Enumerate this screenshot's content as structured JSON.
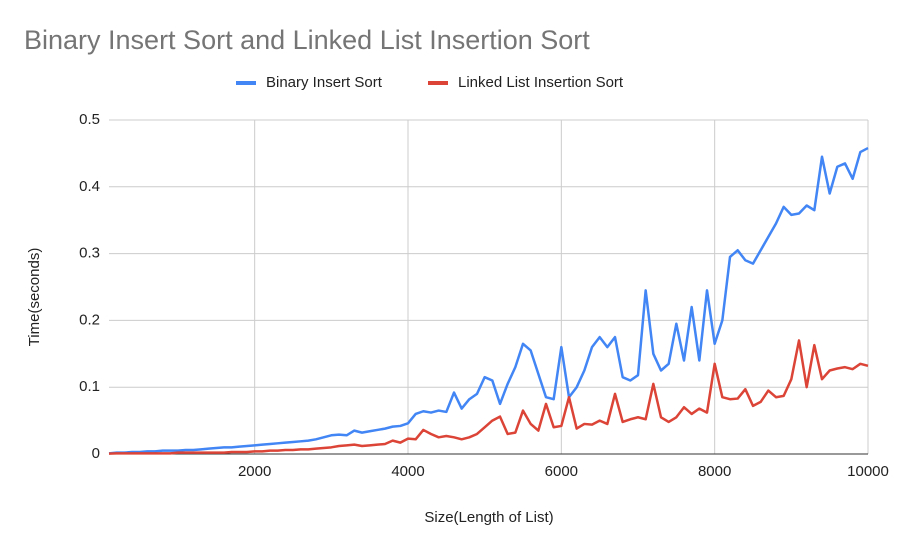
{
  "chart_data": {
    "type": "line",
    "title": "Binary Insert Sort and Linked List Insertion Sort",
    "x_label": "Size(Length of List)",
    "y_label": "Time(seconds)",
    "x": [
      100,
      200,
      300,
      400,
      500,
      600,
      700,
      800,
      900,
      1000,
      1100,
      1200,
      1300,
      1400,
      1500,
      1600,
      1700,
      1800,
      1900,
      2000,
      2100,
      2200,
      2300,
      2400,
      2500,
      2600,
      2700,
      2800,
      2900,
      3000,
      3100,
      3200,
      3300,
      3400,
      3500,
      3600,
      3700,
      3800,
      3900,
      4000,
      4100,
      4200,
      4300,
      4400,
      4500,
      4600,
      4700,
      4800,
      4900,
      5000,
      5100,
      5200,
      5300,
      5400,
      5500,
      5600,
      5700,
      5800,
      5900,
      6000,
      6100,
      6200,
      6300,
      6400,
      6500,
      6600,
      6700,
      6800,
      6900,
      7000,
      7100,
      7200,
      7300,
      7400,
      7500,
      7600,
      7700,
      7800,
      7900,
      8000,
      8100,
      8200,
      8300,
      8400,
      8500,
      8600,
      8700,
      8800,
      8900,
      9000,
      9100,
      9200,
      9300,
      9400,
      9500,
      9600,
      9700,
      9800,
      9900,
      10000
    ],
    "series": [
      {
        "name": "Binary Insert Sort",
        "color": "#4285f4",
        "values": [
          0.001,
          0.002,
          0.002,
          0.003,
          0.003,
          0.004,
          0.004,
          0.005,
          0.005,
          0.005,
          0.006,
          0.006,
          0.007,
          0.008,
          0.009,
          0.01,
          0.01,
          0.011,
          0.012,
          0.013,
          0.014,
          0.015,
          0.016,
          0.017,
          0.018,
          0.019,
          0.02,
          0.022,
          0.025,
          0.028,
          0.029,
          0.028,
          0.035,
          0.032,
          0.034,
          0.036,
          0.038,
          0.041,
          0.042,
          0.046,
          0.06,
          0.064,
          0.062,
          0.065,
          0.063,
          0.092,
          0.068,
          0.082,
          0.09,
          0.115,
          0.11,
          0.075,
          0.105,
          0.13,
          0.165,
          0.155,
          0.12,
          0.085,
          0.082,
          0.16,
          0.085,
          0.1,
          0.125,
          0.16,
          0.175,
          0.16,
          0.175,
          0.115,
          0.11,
          0.118,
          0.245,
          0.15,
          0.125,
          0.135,
          0.195,
          0.14,
          0.22,
          0.14,
          0.245,
          0.165,
          0.2,
          0.295,
          0.305,
          0.29,
          0.285,
          0.305,
          0.325,
          0.345,
          0.37,
          0.358,
          0.36,
          0.372,
          0.365,
          0.445,
          0.39,
          0.43,
          0.435,
          0.412,
          0.452,
          0.458
        ]
      },
      {
        "name": "Linked List Insertion Sort",
        "color": "#db4437",
        "values": [
          0.0005,
          0.001,
          0.001,
          0.001,
          0.001,
          0.001,
          0.001,
          0.001,
          0.001,
          0.002,
          0.002,
          0.002,
          0.002,
          0.002,
          0.002,
          0.002,
          0.003,
          0.003,
          0.003,
          0.004,
          0.004,
          0.005,
          0.005,
          0.006,
          0.006,
          0.007,
          0.007,
          0.008,
          0.009,
          0.01,
          0.012,
          0.013,
          0.014,
          0.012,
          0.013,
          0.014,
          0.015,
          0.02,
          0.017,
          0.023,
          0.022,
          0.036,
          0.03,
          0.025,
          0.027,
          0.025,
          0.022,
          0.025,
          0.03,
          0.04,
          0.05,
          0.056,
          0.03,
          0.032,
          0.065,
          0.045,
          0.035,
          0.075,
          0.04,
          0.042,
          0.085,
          0.038,
          0.045,
          0.044,
          0.05,
          0.045,
          0.09,
          0.048,
          0.052,
          0.055,
          0.052,
          0.105,
          0.055,
          0.048,
          0.055,
          0.07,
          0.06,
          0.068,
          0.062,
          0.135,
          0.085,
          0.082,
          0.083,
          0.097,
          0.072,
          0.078,
          0.095,
          0.085,
          0.087,
          0.112,
          0.17,
          0.1,
          0.163,
          0.112,
          0.125,
          0.128,
          0.13,
          0.127,
          0.135,
          0.132
        ]
      }
    ],
    "xlim": [
      100,
      10000
    ],
    "xticks": [
      2000,
      4000,
      6000,
      8000,
      10000
    ],
    "ylim": [
      0,
      0.5
    ],
    "yticks": [
      0,
      0.1,
      0.2,
      0.3,
      0.4,
      0.5
    ],
    "grid": true,
    "legend": "top"
  }
}
